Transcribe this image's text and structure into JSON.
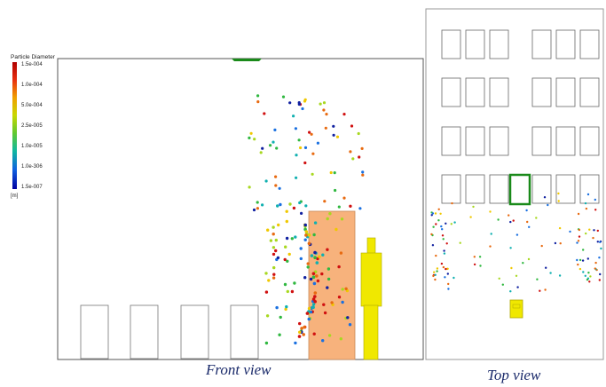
{
  "legend": {
    "title": "Particle Diameter",
    "unit": "[m]",
    "ticks": [
      "1.5e-004",
      "1.0e-004",
      "5.0e-004",
      "2.5e-005",
      "1.0e-005",
      "1.0e-306",
      "1.5e-007"
    ],
    "colors": [
      "#b00000",
      "#e83010",
      "#f0a000",
      "#c8d800",
      "#60c830",
      "#10b8a0",
      "#1060e0",
      "#0000a0"
    ]
  },
  "front_view": {
    "caption": "Front view",
    "colors": {
      "frame": "#555555",
      "inlet": "#1a8a1a",
      "person_box": "#f7b27c",
      "yellow_figure": "#f0e800",
      "desk": "#ffffff"
    }
  },
  "top_view": {
    "caption": "Top view",
    "colors": {
      "frame": "#999999",
      "inlet": "#1a8a1a",
      "yellow_figure": "#f0e800"
    }
  },
  "particle_palette": [
    "#d01010",
    "#e86a10",
    "#f0c800",
    "#a8d820",
    "#30b840",
    "#10b0b0",
    "#1a70e0",
    "#1020a0"
  ]
}
